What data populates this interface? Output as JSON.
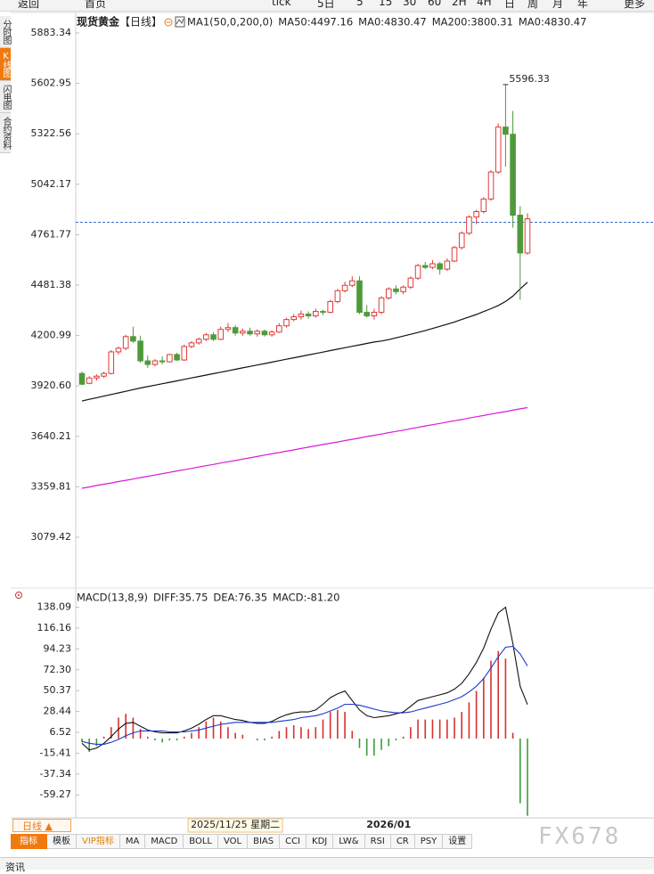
{
  "ui": {
    "toolbar": [
      "返回",
      "首页",
      "tick",
      "5日",
      "5",
      "15",
      "30",
      "60",
      "2H",
      "4H",
      "日",
      "周",
      "月",
      "年",
      "更多"
    ],
    "sidebar": [
      "分时图",
      "K线图",
      "闪电图",
      "合约资料"
    ],
    "bottom_button": "日线 ▲",
    "tabs": [
      "指标",
      "模板",
      "VIP指标",
      "MA",
      "MACD",
      "BOLL",
      "VOL",
      "BIAS",
      "CCI",
      "KDJ",
      "LW&",
      "RSI",
      "CR",
      "PSY",
      "设置"
    ],
    "watermark": "FX678",
    "footer": "资讯"
  },
  "chart_data": [
    {
      "type": "candlestick",
      "title": "现货黄金",
      "period": "【日线】",
      "legend": [
        {
          "text": "MA1(50,0,200,0)",
          "color": "#222222"
        },
        {
          "text": "MA50:4497.16",
          "color": "#222222"
        },
        {
          "text": "MA0:4830.47",
          "color": "#1a3a9a"
        },
        {
          "text": "MA200:3800.31",
          "color": "#d81bd8"
        },
        {
          "text": "MA0:4830.47",
          "color": "#e0801a"
        }
      ],
      "up_color": "#e03a3a",
      "down_color": "#4f9a3a",
      "categories": [
        null,
        null,
        null,
        null,
        null,
        null,
        null,
        null,
        null,
        null,
        null,
        null,
        null,
        null,
        null,
        null,
        null,
        null,
        null,
        null,
        null,
        "2025/11/25 星期二",
        null,
        null,
        null,
        null,
        null,
        null,
        null,
        null,
        null,
        null,
        null,
        null,
        null,
        null,
        null,
        null,
        null,
        null,
        null,
        null,
        "2026/01",
        null,
        null,
        null,
        null,
        null,
        null,
        null,
        null,
        null,
        null,
        null,
        null,
        null,
        null,
        null,
        null,
        null,
        null,
        null
      ],
      "open": [
        3990,
        3935,
        3965,
        3975,
        3990,
        4110,
        4130,
        4195,
        4170,
        4060,
        4040,
        4060,
        4055,
        4095,
        4065,
        4140,
        4160,
        4180,
        4205,
        4180,
        4235,
        4245,
        4215,
        4225,
        4210,
        4225,
        4205,
        4220,
        4255,
        4290,
        4305,
        4320,
        4310,
        4335,
        4330,
        4390,
        4450,
        4480,
        4505,
        4330,
        4310,
        4330,
        4410,
        4460,
        4445,
        4470,
        4520,
        4590,
        4580,
        4600,
        4570,
        4615,
        4690,
        4770,
        4860,
        4890,
        4960,
        5110,
        5360,
        5320,
        4870,
        4660
      ],
      "high": [
        4000,
        3975,
        3985,
        4000,
        4120,
        4140,
        4205,
        4250,
        4200,
        4090,
        4070,
        4085,
        4100,
        4105,
        4150,
        4170,
        4190,
        4215,
        4220,
        4250,
        4270,
        4260,
        4240,
        4245,
        4235,
        4235,
        4230,
        4270,
        4300,
        4320,
        4340,
        4335,
        4350,
        4345,
        4400,
        4460,
        4500,
        4530,
        4530,
        4370,
        4350,
        4420,
        4470,
        4480,
        4480,
        4530,
        4600,
        4610,
        4620,
        4610,
        4630,
        4700,
        4780,
        4870,
        4900,
        4970,
        5120,
        5380,
        5596.33,
        5450,
        4920,
        4880
      ],
      "low": [
        3925,
        3930,
        3950,
        3965,
        3985,
        4095,
        4120,
        4160,
        4050,
        4020,
        4030,
        4040,
        4050,
        4060,
        4060,
        4130,
        4150,
        4170,
        4170,
        4175,
        4220,
        4200,
        4200,
        4200,
        4195,
        4195,
        4195,
        4215,
        4245,
        4280,
        4290,
        4295,
        4300,
        4315,
        4325,
        4380,
        4440,
        4470,
        4320,
        4300,
        4290,
        4320,
        4400,
        4430,
        4430,
        4460,
        4510,
        4570,
        4570,
        4540,
        4560,
        4610,
        4680,
        4760,
        4820,
        4880,
        4950,
        5100,
        5140,
        4800,
        4400,
        4650
      ],
      "close": [
        3930,
        3965,
        3975,
        3990,
        4110,
        4130,
        4195,
        4170,
        4060,
        4040,
        4060,
        4055,
        4095,
        4065,
        4140,
        4160,
        4180,
        4205,
        4180,
        4235,
        4245,
        4215,
        4225,
        4210,
        4225,
        4205,
        4220,
        4255,
        4290,
        4305,
        4320,
        4310,
        4335,
        4330,
        4390,
        4450,
        4480,
        4505,
        4330,
        4310,
        4330,
        4410,
        4460,
        4445,
        4470,
        4520,
        4590,
        4580,
        4600,
        4570,
        4615,
        4690,
        4770,
        4860,
        4890,
        4960,
        5110,
        5360,
        5320,
        4870,
        4660,
        4850
      ],
      "lines": [
        {
          "color": "#111111",
          "values": [
            3837,
            3846,
            3855,
            3864,
            3873,
            3882,
            3891,
            3900,
            3909,
            3917,
            3925,
            3933,
            3941,
            3949,
            3957,
            3965,
            3973,
            3981,
            3989,
            3997,
            4005,
            4013,
            4021,
            4029,
            4037,
            4045,
            4053,
            4061,
            4069,
            4077,
            4085,
            4093,
            4101,
            4109,
            4117,
            4125,
            4133,
            4141,
            4149,
            4157,
            4165,
            4170,
            4178,
            4188,
            4198,
            4208,
            4218,
            4228,
            4240,
            4252,
            4264,
            4276,
            4290,
            4304,
            4318,
            4334,
            4350,
            4368,
            4390,
            4420,
            4460,
            4497.16
          ]
        },
        {
          "color": "#d81bd8",
          "values": [
            3352,
            3359,
            3367,
            3374,
            3381,
            3389,
            3396,
            3403,
            3411,
            3418,
            3425,
            3433,
            3440,
            3448,
            3455,
            3462,
            3470,
            3477,
            3484,
            3492,
            3499,
            3506,
            3514,
            3521,
            3528,
            3536,
            3543,
            3550,
            3558,
            3565,
            3573,
            3580,
            3587,
            3595,
            3602,
            3609,
            3617,
            3624,
            3631,
            3639,
            3646,
            3653,
            3661,
            3668,
            3675,
            3683,
            3690,
            3698,
            3705,
            3712,
            3720,
            3727,
            3734,
            3742,
            3749,
            3756,
            3764,
            3771,
            3778,
            3786,
            3793,
            3800.31
          ]
        }
      ],
      "reference_line": {
        "value": 4830.47,
        "color": "#3a6ad0"
      },
      "ylim": [
        2797,
        5967.5
      ],
      "yticks": [
        5883.34,
        5602.95,
        5322.56,
        5042.17,
        4761.77,
        4481.38,
        4200.99,
        {
          "value": 3920.6,
          "label": "3920.60"
        },
        3640.21,
        3359.81,
        3079.42
      ]
    },
    {
      "type": "macd",
      "legend": [
        {
          "text": "MACD(13,8,9)",
          "color": "#222222"
        },
        {
          "text": "DIFF:35.75",
          "color": "#222222"
        },
        {
          "text": "DEA:76.35",
          "color": "#1a3a9a"
        },
        {
          "text": "MACD:-81.20",
          "color": "#d81bd8"
        }
      ],
      "series": [
        {
          "color": "#111111",
          "values": [
            -5,
            -12,
            -10,
            -5,
            2,
            10,
            16,
            17,
            13,
            9,
            7,
            6,
            6,
            6,
            8,
            11,
            15,
            20,
            24,
            24,
            22,
            20,
            19,
            17,
            16,
            16,
            18,
            22,
            25,
            27,
            28,
            28,
            30,
            36,
            43,
            47,
            50,
            40,
            30,
            24,
            22,
            23,
            24,
            26,
            28,
            34,
            40,
            42,
            44,
            46,
            48,
            52,
            58,
            68,
            80,
            95,
            115,
            132,
            138,
            100,
            55,
            35.75
          ]
        },
        {
          "color": "#1a3acc",
          "values": [
            -3,
            -5,
            -6,
            -6,
            -4,
            -1,
            3,
            6,
            8,
            8,
            8,
            8,
            7,
            7,
            7,
            8,
            9,
            11,
            13,
            15,
            16,
            17,
            17,
            17,
            17,
            17,
            17,
            18,
            19,
            20,
            22,
            23,
            24,
            26,
            29,
            32,
            36,
            36,
            35,
            33,
            31,
            29,
            28,
            27,
            27,
            28,
            30,
            32,
            34,
            36,
            38,
            41,
            44,
            49,
            55,
            63,
            74,
            86,
            96,
            97,
            89,
            76.35
          ]
        },
        {
          "up_color": "#d83030",
          "down_color": "#3f9a3f",
          "values": [
            -4,
            -14,
            -8,
            2,
            12,
            22,
            26,
            22,
            10,
            2,
            -2,
            -4,
            -2,
            -2,
            2,
            6,
            12,
            18,
            22,
            18,
            12,
            6,
            4,
            0,
            -2,
            -2,
            2,
            8,
            12,
            14,
            12,
            10,
            12,
            20,
            28,
            30,
            28,
            8,
            -10,
            -18,
            -18,
            -12,
            -8,
            -2,
            2,
            12,
            20,
            20,
            20,
            20,
            20,
            22,
            28,
            38,
            50,
            64,
            82,
            92,
            84,
            6,
            -68,
            -81.2
          ]
        }
      ],
      "ylim": [
        -83.4,
        156.4
      ],
      "yticks": [
        138.09,
        116.16,
        94.23,
        {
          "value": 72.3,
          "label": "72.30"
        },
        50.37,
        28.44,
        6.52,
        -15.41,
        -37.34,
        -59.27
      ]
    }
  ]
}
